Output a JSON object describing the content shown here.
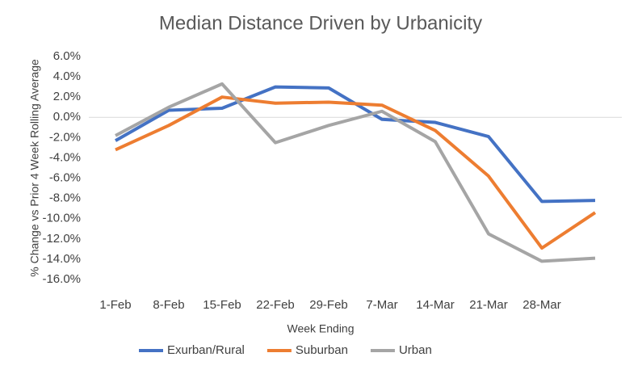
{
  "chart_data": {
    "type": "line",
    "title": "Median Distance Driven by Urbanicity",
    "x_label": "Week Ending",
    "y_label": "% Change vs Prior 4 Week Rolling Average",
    "categories": [
      "1-Feb",
      "8-Feb",
      "15-Feb",
      "22-Feb",
      "29-Feb",
      "7-Mar",
      "14-Mar",
      "21-Mar",
      "28-Mar",
      null
    ],
    "series": [
      {
        "name": "Exurban/Rural",
        "color": "#4472c4",
        "values": [
          -2.3,
          0.7,
          0.9,
          3.0,
          2.9,
          -0.2,
          -0.5,
          -1.9,
          -8.3,
          -8.2
        ]
      },
      {
        "name": "Suburban",
        "color": "#ed7d31",
        "values": [
          -3.2,
          -0.8,
          2.0,
          1.4,
          1.5,
          1.2,
          -1.3,
          -5.8,
          -12.9,
          -9.4
        ]
      },
      {
        "name": "Urban",
        "color": "#a5a5a5",
        "values": [
          -1.8,
          1.0,
          3.3,
          -2.5,
          -0.8,
          0.6,
          -2.4,
          -11.5,
          -14.2,
          -13.9
        ]
      }
    ],
    "ylim": [
      -16,
      6
    ],
    "yticks": [
      {
        "value": -16,
        "label": "-16.0%"
      },
      {
        "value": -14,
        "label": "-14.0%"
      },
      {
        "value": -12,
        "label": "-12.0%"
      },
      {
        "value": -10,
        "label": "-10.0%"
      },
      {
        "value": -8,
        "label": "-8.0%"
      },
      {
        "value": -6,
        "label": "-6.0%"
      },
      {
        "value": -4,
        "label": "-4.0%"
      },
      {
        "value": -2,
        "label": "-2.0%"
      },
      {
        "value": 0,
        "label": "0.0%"
      },
      {
        "value": 2,
        "label": "2.0%"
      },
      {
        "value": 4,
        "label": "4.0%"
      },
      {
        "value": 6,
        "label": "6.0%"
      }
    ],
    "grid": false,
    "legend": "bottom"
  }
}
